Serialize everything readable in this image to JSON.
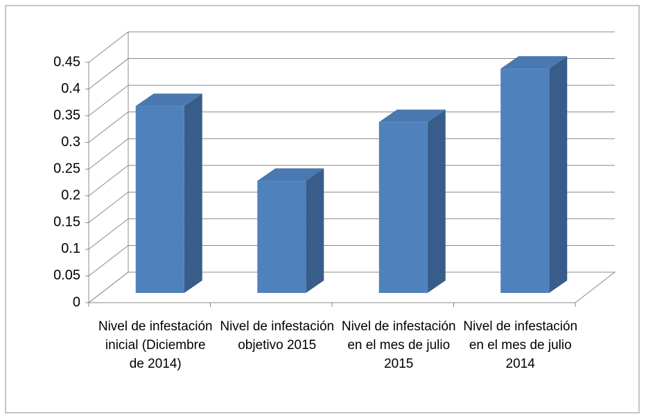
{
  "chart_data": {
    "type": "bar3d",
    "categories": [
      "Nivel de infestación inicial (Diciembre de 2014)",
      "Nivel de infestación objetivo 2015",
      "Nivel de infestación en el mes de julio 2015",
      "Nivel de infestación en el mes de julio 2014"
    ],
    "values": [
      0.35,
      0.21,
      0.32,
      0.42
    ],
    "color": "#4f81bd",
    "ylim": [
      0,
      0.45
    ],
    "yticks": [
      0,
      0.05,
      0.1,
      0.15,
      0.2,
      0.25,
      0.3,
      0.35,
      0.4,
      0.45
    ],
    "grid": true
  }
}
